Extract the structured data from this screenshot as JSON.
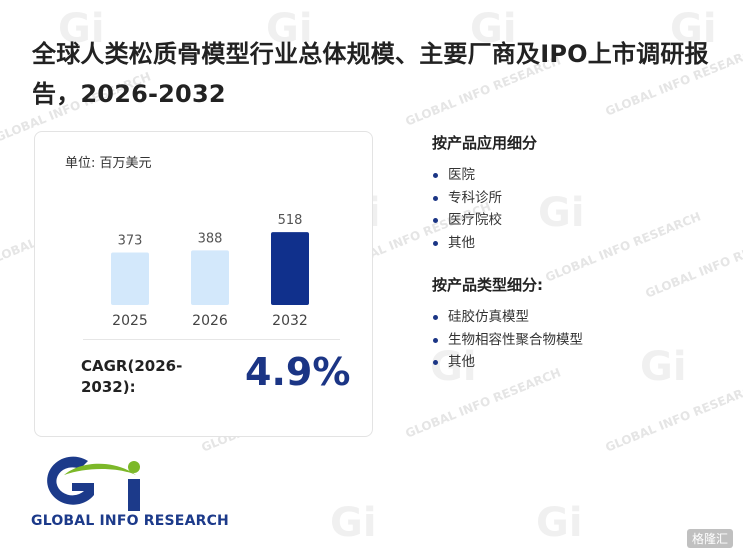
{
  "title": "全球人类松质骨模型行业总体规模、主要厂商及IPO上市调研报告，2026-2032",
  "unit_label": "单位: 百万美元",
  "chart_data": {
    "type": "bar",
    "categories": [
      "2025",
      "2026",
      "2032"
    ],
    "values": [
      373,
      388,
      518
    ],
    "colors": [
      "#d3e8fb",
      "#d3e8fb",
      "#10308c"
    ],
    "ylabel": "百万美元"
  },
  "cagr": {
    "label": "CAGR(2026-2032):",
    "value": "4.9%"
  },
  "application": {
    "title": "按产品应用细分",
    "items": [
      "医院",
      "专科诊所",
      "医疗院校",
      "其他"
    ]
  },
  "type_segment": {
    "title": "按产品类型细分:",
    "items": [
      "硅胶仿真模型",
      "生物相容性聚合物模型",
      "其他"
    ]
  },
  "logo": {
    "text": "GLOBAL INFO RESEARCH",
    "colors": {
      "green": "#7cb829",
      "blue": "#1c3a8a"
    }
  },
  "watermark": {
    "text": "GLOBAL INFO RESEARCH",
    "corner": "格隆汇"
  }
}
